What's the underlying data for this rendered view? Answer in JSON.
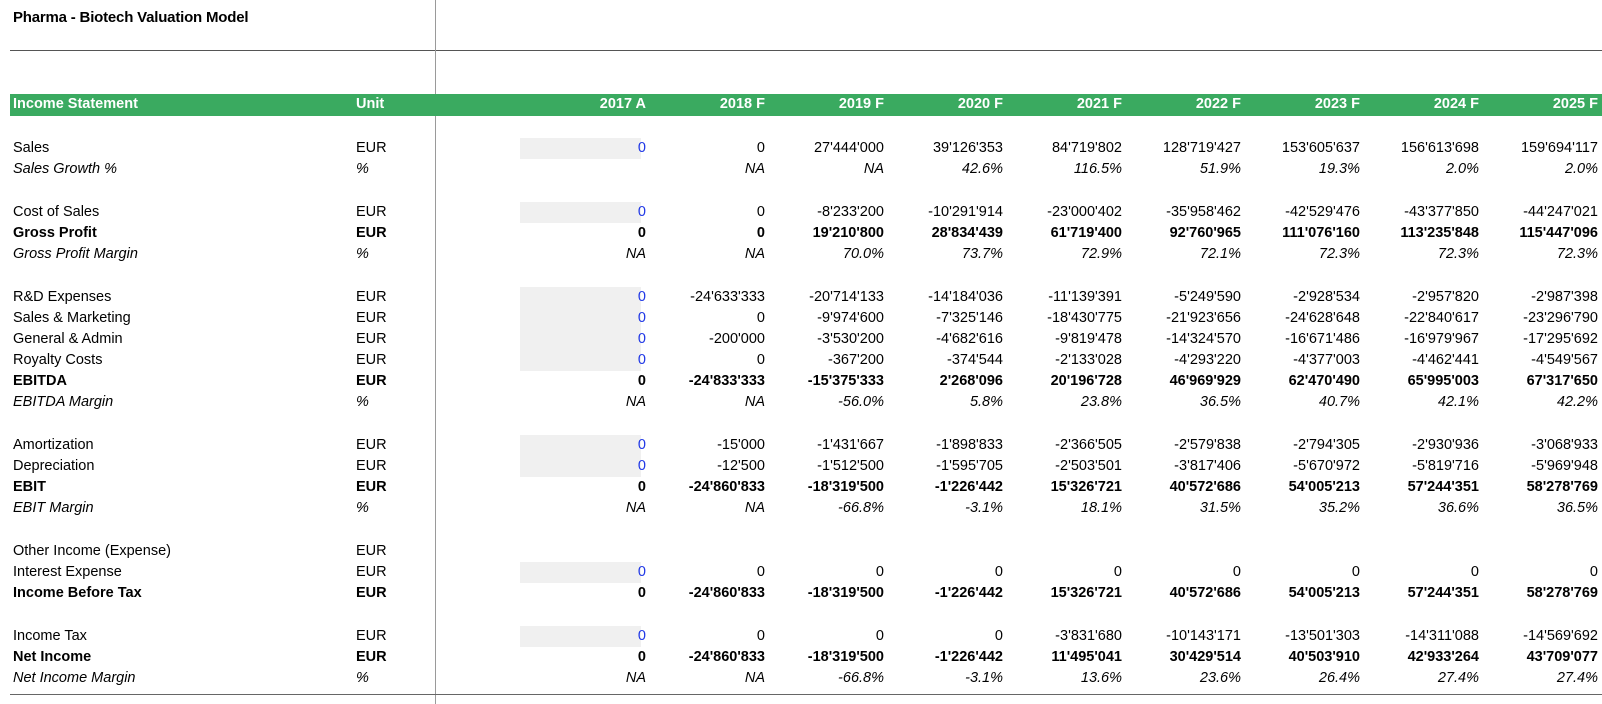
{
  "title": "Pharma - Biotech Valuation Model",
  "header": {
    "label": "Income Statement",
    "unit": "Unit",
    "years": [
      "2017 A",
      "2018 F",
      "2019 F",
      "2020 F",
      "2021 F",
      "2022 F",
      "2023 F",
      "2024 F",
      "2025 F"
    ]
  },
  "rows": [
    {
      "label": "Sales",
      "unit": "EUR",
      "style": "normal",
      "input": true,
      "values": [
        "0",
        "0",
        "27'444'000",
        "39'126'353",
        "84'719'802",
        "128'719'427",
        "153'605'637",
        "156'613'698",
        "159'694'117"
      ]
    },
    {
      "label": "Sales Growth %",
      "unit": "%",
      "style": "italic",
      "input": false,
      "values": [
        "",
        "NA",
        "NA",
        "42.6%",
        "116.5%",
        "51.9%",
        "19.3%",
        "2.0%",
        "2.0%"
      ]
    },
    {
      "label": "Cost of Sales",
      "unit": "EUR",
      "style": "normal",
      "input": true,
      "values": [
        "0",
        "0",
        "-8'233'200",
        "-10'291'914",
        "-23'000'402",
        "-35'958'462",
        "-42'529'476",
        "-43'377'850",
        "-44'247'021"
      ]
    },
    {
      "label": "Gross Profit",
      "unit": "EUR",
      "style": "bold",
      "input": false,
      "values": [
        "0",
        "0",
        "19'210'800",
        "28'834'439",
        "61'719'400",
        "92'760'965",
        "111'076'160",
        "113'235'848",
        "115'447'096"
      ]
    },
    {
      "label": "Gross Profit Margin",
      "unit": "%",
      "style": "italic",
      "input": false,
      "values": [
        "NA",
        "NA",
        "70.0%",
        "73.7%",
        "72.9%",
        "72.1%",
        "72.3%",
        "72.3%",
        "72.3%"
      ]
    },
    {
      "label": "R&D Expenses",
      "unit": "EUR",
      "style": "normal",
      "input": true,
      "values": [
        "0",
        "-24'633'333",
        "-20'714'133",
        "-14'184'036",
        "-11'139'391",
        "-5'249'590",
        "-2'928'534",
        "-2'957'820",
        "-2'987'398"
      ]
    },
    {
      "label": "Sales & Marketing",
      "unit": "EUR",
      "style": "normal",
      "input": true,
      "values": [
        "0",
        "0",
        "-9'974'600",
        "-7'325'146",
        "-18'430'775",
        "-21'923'656",
        "-24'628'648",
        "-22'840'617",
        "-23'296'790"
      ]
    },
    {
      "label": "General & Admin",
      "unit": "EUR",
      "style": "normal",
      "input": true,
      "values": [
        "0",
        "-200'000",
        "-3'530'200",
        "-4'682'616",
        "-9'819'478",
        "-14'324'570",
        "-16'671'486",
        "-16'979'967",
        "-17'295'692"
      ]
    },
    {
      "label": "Royalty Costs",
      "unit": "EUR",
      "style": "normal",
      "input": true,
      "values": [
        "0",
        "0",
        "-367'200",
        "-374'544",
        "-2'133'028",
        "-4'293'220",
        "-4'377'003",
        "-4'462'441",
        "-4'549'567"
      ]
    },
    {
      "label": "EBITDA",
      "unit": "EUR",
      "style": "bold",
      "input": false,
      "values": [
        "0",
        "-24'833'333",
        "-15'375'333",
        "2'268'096",
        "20'196'728",
        "46'969'929",
        "62'470'490",
        "65'995'003",
        "67'317'650"
      ]
    },
    {
      "label": "EBITDA Margin",
      "unit": "%",
      "style": "italic",
      "input": false,
      "values": [
        "NA",
        "NA",
        "-56.0%",
        "5.8%",
        "23.8%",
        "36.5%",
        "40.7%",
        "42.1%",
        "42.2%"
      ]
    },
    {
      "label": "Amortization",
      "unit": "EUR",
      "style": "normal",
      "input": true,
      "values": [
        "0",
        "-15'000",
        "-1'431'667",
        "-1'898'833",
        "-2'366'505",
        "-2'579'838",
        "-2'794'305",
        "-2'930'936",
        "-3'068'933"
      ]
    },
    {
      "label": "Depreciation",
      "unit": "EUR",
      "style": "normal",
      "input": true,
      "values": [
        "0",
        "-12'500",
        "-1'512'500",
        "-1'595'705",
        "-2'503'501",
        "-3'817'406",
        "-5'670'972",
        "-5'819'716",
        "-5'969'948"
      ]
    },
    {
      "label": "EBIT",
      "unit": "EUR",
      "style": "bold",
      "input": false,
      "values": [
        "0",
        "-24'860'833",
        "-18'319'500",
        "-1'226'442",
        "15'326'721",
        "40'572'686",
        "54'005'213",
        "57'244'351",
        "58'278'769"
      ]
    },
    {
      "label": "EBIT Margin",
      "unit": "%",
      "style": "italic",
      "input": false,
      "values": [
        "NA",
        "NA",
        "-66.8%",
        "-3.1%",
        "18.1%",
        "31.5%",
        "35.2%",
        "36.6%",
        "36.5%"
      ]
    },
    {
      "label": "Other Income (Expense)",
      "unit": "EUR",
      "style": "normal",
      "input": false,
      "values": [
        "",
        "",
        "",
        "",
        "",
        "",
        "",
        "",
        ""
      ]
    },
    {
      "label": "Interest Expense",
      "unit": "EUR",
      "style": "normal",
      "input": true,
      "values": [
        "0",
        "0",
        "0",
        "0",
        "0",
        "0",
        "0",
        "0",
        "0"
      ]
    },
    {
      "label": "Income Before Tax",
      "unit": "EUR",
      "style": "bold",
      "input": false,
      "values": [
        "0",
        "-24'860'833",
        "-18'319'500",
        "-1'226'442",
        "15'326'721",
        "40'572'686",
        "54'005'213",
        "57'244'351",
        "58'278'769"
      ]
    },
    {
      "label": "Income Tax",
      "unit": "EUR",
      "style": "normal",
      "input": true,
      "values": [
        "0",
        "0",
        "0",
        "0",
        "-3'831'680",
        "-10'143'171",
        "-13'501'303",
        "-14'311'088",
        "-14'569'692"
      ]
    },
    {
      "label": "Net Income",
      "unit": "EUR",
      "style": "bold",
      "input": false,
      "values": [
        "0",
        "-24'860'833",
        "-18'319'500",
        "-1'226'442",
        "11'495'041",
        "30'429'514",
        "40'503'910",
        "42'933'264",
        "43'709'077"
      ]
    },
    {
      "label": "Net Income Margin",
      "unit": "%",
      "style": "italic",
      "input": false,
      "values": [
        "NA",
        "NA",
        "-66.8%",
        "-3.1%",
        "13.6%",
        "23.6%",
        "26.4%",
        "27.4%",
        "27.4%"
      ]
    }
  ]
}
